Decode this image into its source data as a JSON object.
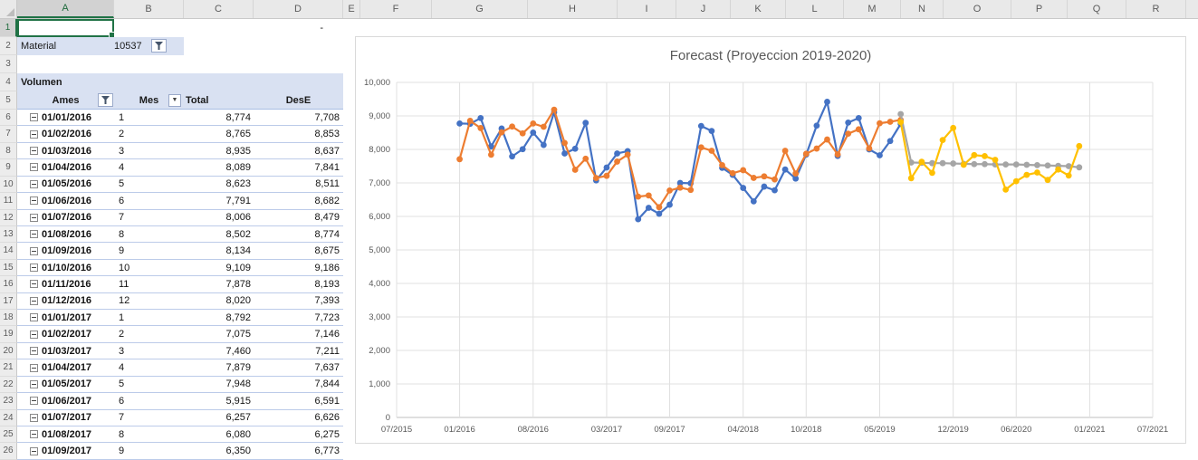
{
  "sheet": {
    "columns": [
      {
        "letter": "A",
        "w": 107,
        "selected": true
      },
      {
        "letter": "B",
        "w": 77
      },
      {
        "letter": "C",
        "w": 77
      },
      {
        "letter": "D",
        "w": 99
      },
      {
        "letter": "E",
        "w": 19
      },
      {
        "letter": "F",
        "w": 79
      },
      {
        "letter": "G",
        "w": 106
      },
      {
        "letter": "H",
        "w": 99
      },
      {
        "letter": "I",
        "w": 65
      },
      {
        "letter": "J",
        "w": 60
      },
      {
        "letter": "K",
        "w": 61
      },
      {
        "letter": "L",
        "w": 64
      },
      {
        "letter": "M",
        "w": 63
      },
      {
        "letter": "N",
        "w": 47
      },
      {
        "letter": "O",
        "w": 75
      },
      {
        "letter": "P",
        "w": 62
      },
      {
        "letter": "Q",
        "w": 65
      },
      {
        "letter": "R",
        "w": 66
      },
      {
        "letter": "",
        "w": 14
      }
    ],
    "row_count": 26,
    "cells": {
      "d1_value": "-",
      "material_label": "Material",
      "material_value": "10537"
    },
    "pivot": {
      "title": "Volumen",
      "headers": {
        "ames": "Ames",
        "mes": "Mes",
        "total": "Total",
        "dese": "DesE"
      },
      "rows": [
        {
          "date": "01/01/2016",
          "mes": "1",
          "total": "8,774",
          "dese": "7,708"
        },
        {
          "date": "01/02/2016",
          "mes": "2",
          "total": "8,765",
          "dese": "8,853"
        },
        {
          "date": "01/03/2016",
          "mes": "3",
          "total": "8,935",
          "dese": "8,637"
        },
        {
          "date": "01/04/2016",
          "mes": "4",
          "total": "8,089",
          "dese": "7,841"
        },
        {
          "date": "01/05/2016",
          "mes": "5",
          "total": "8,623",
          "dese": "8,511"
        },
        {
          "date": "01/06/2016",
          "mes": "6",
          "total": "7,791",
          "dese": "8,682"
        },
        {
          "date": "01/07/2016",
          "mes": "7",
          "total": "8,006",
          "dese": "8,479"
        },
        {
          "date": "01/08/2016",
          "mes": "8",
          "total": "8,502",
          "dese": "8,774"
        },
        {
          "date": "01/09/2016",
          "mes": "9",
          "total": "8,134",
          "dese": "8,675"
        },
        {
          "date": "01/10/2016",
          "mes": "10",
          "total": "9,109",
          "dese": "9,186"
        },
        {
          "date": "01/11/2016",
          "mes": "11",
          "total": "7,878",
          "dese": "8,193"
        },
        {
          "date": "01/12/2016",
          "mes": "12",
          "total": "8,020",
          "dese": "7,393"
        },
        {
          "date": "01/01/2017",
          "mes": "1",
          "total": "8,792",
          "dese": "7,723"
        },
        {
          "date": "01/02/2017",
          "mes": "2",
          "total": "7,075",
          "dese": "7,146"
        },
        {
          "date": "01/03/2017",
          "mes": "3",
          "total": "7,460",
          "dese": "7,211"
        },
        {
          "date": "01/04/2017",
          "mes": "4",
          "total": "7,879",
          "dese": "7,637"
        },
        {
          "date": "01/05/2017",
          "mes": "5",
          "total": "7,948",
          "dese": "7,844"
        },
        {
          "date": "01/06/2017",
          "mes": "6",
          "total": "5,915",
          "dese": "6,591"
        },
        {
          "date": "01/07/2017",
          "mes": "7",
          "total": "6,257",
          "dese": "6,626"
        },
        {
          "date": "01/08/2017",
          "mes": "8",
          "total": "6,080",
          "dese": "6,275"
        },
        {
          "date": "01/09/2017",
          "mes": "9",
          "total": "6,350",
          "dese": "6,773"
        }
      ]
    }
  },
  "chart_data": {
    "type": "line",
    "title": "Forecast (Proyeccion 2019-2020)",
    "legend": "none",
    "grid": true,
    "ylim": [
      0,
      10000
    ],
    "ytick_step": 1000,
    "axis_start": "07/2015",
    "axis_end": "07/2021",
    "months_span": 72,
    "x_ticks": [
      {
        "label": "07/2015",
        "m": 0
      },
      {
        "label": "01/2016",
        "m": 6
      },
      {
        "label": "08/2016",
        "m": 13
      },
      {
        "label": "03/2017",
        "m": 20
      },
      {
        "label": "09/2017",
        "m": 26
      },
      {
        "label": "04/2018",
        "m": 33
      },
      {
        "label": "10/2018",
        "m": 39
      },
      {
        "label": "05/2019",
        "m": 46
      },
      {
        "label": "12/2019",
        "m": 53
      },
      {
        "label": "06/2020",
        "m": 59
      },
      {
        "label": "01/2021",
        "m": 66
      },
      {
        "label": "07/2021",
        "m": 72
      }
    ],
    "series": [
      {
        "name": "Total",
        "color": "#4472C4",
        "start_month": "01/2016",
        "start_m": 6,
        "values": [
          8774,
          8765,
          8935,
          8089,
          8623,
          7791,
          8006,
          8502,
          8134,
          9109,
          7878,
          8020,
          8792,
          7075,
          7460,
          7879,
          7948,
          5915,
          6257,
          6080,
          6350,
          7000,
          6990,
          8700,
          8550,
          7450,
          7240,
          6850,
          6450,
          6890,
          6780,
          7400,
          7130,
          7845,
          8710,
          9420,
          7805,
          8800,
          8935,
          8000,
          7825,
          8250,
          8760
        ]
      },
      {
        "name": "DesE",
        "color": "#ED7D31",
        "start_month": "01/2016",
        "start_m": 6,
        "values": [
          7708,
          8853,
          8637,
          7841,
          8511,
          8682,
          8479,
          8774,
          8675,
          9186,
          8193,
          7393,
          7723,
          7146,
          7211,
          7637,
          7844,
          6591,
          6626,
          6275,
          6773,
          6860,
          6790,
          8060,
          7960,
          7530,
          7290,
          7380,
          7150,
          7195,
          7105,
          7960,
          7280,
          7870,
          8025,
          8295,
          7850,
          8470,
          8600,
          8030,
          8780,
          8825,
          8880
        ]
      },
      {
        "name": "forecast_gray",
        "color": "#A5A5A5",
        "start_month": "07/2019",
        "start_m": 48,
        "values": [
          9055,
          7610,
          7600,
          7590,
          7590,
          7580,
          7570,
          7560,
          7560,
          7550,
          7550,
          7550,
          7540,
          7530,
          7520,
          7510,
          7500,
          7465
        ]
      },
      {
        "name": "forecast_yellow",
        "color": "#FFC000",
        "start_month": "07/2019",
        "start_m": 48,
        "values": [
          8815,
          7140,
          7630,
          7300,
          8280,
          8640,
          7540,
          7830,
          7800,
          7690,
          6800,
          7050,
          7240,
          7310,
          7090,
          7400,
          7220,
          8100
        ]
      }
    ]
  }
}
